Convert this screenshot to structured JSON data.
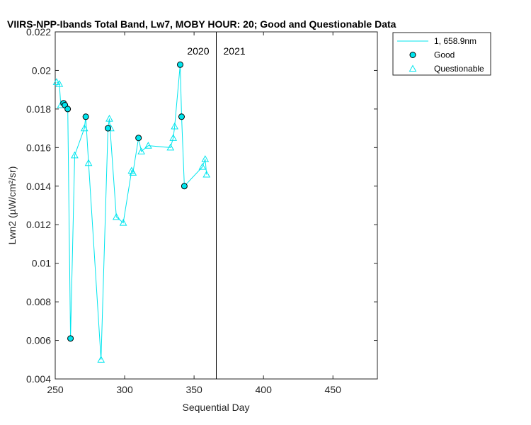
{
  "chart_data": {
    "type": "line",
    "title": "VIIRS-NPP-Ibands Total Band, Lw7, MOBY HOUR: 20;  Good and Questionable Data",
    "xlabel": "Sequential Day",
    "ylabel": "Lwn2 (µW/cm²/sr)",
    "xlim": [
      250,
      482
    ],
    "ylim": [
      0.004,
      0.022
    ],
    "xticks": [
      250,
      300,
      350,
      400,
      450
    ],
    "yticks": [
      0.004,
      0.006,
      0.008,
      0.01,
      0.012,
      0.014,
      0.016,
      0.018,
      0.02,
      0.022
    ],
    "xtick_labels": [
      "250",
      "300",
      "350",
      "400",
      "450"
    ],
    "ytick_labels": [
      "0.004",
      "0.006",
      "0.008",
      "0.01",
      "0.012",
      "0.014",
      "0.016",
      "0.018",
      "0.02",
      "0.022"
    ],
    "grid": false,
    "legend_position": "outside-top-right",
    "color": "#00e5ee",
    "year_divider": {
      "x": 366,
      "left_label": "2020",
      "right_label": "2021"
    },
    "series": [
      {
        "name": "1, 658.9nm",
        "style": "line",
        "x": [
          251,
          253,
          254,
          256,
          257,
          259,
          261,
          264,
          271,
          272,
          274,
          283,
          288,
          289,
          294,
          299,
          305,
          306,
          310,
          312,
          317,
          333,
          335,
          336,
          340,
          341,
          343,
          356,
          358,
          359
        ],
        "y": [
          0.0194,
          0.0193,
          0.0182,
          0.0183,
          0.0182,
          0.018,
          0.0061,
          0.0156,
          0.017,
          0.0176,
          0.0152,
          0.005,
          0.017,
          0.0175,
          0.0124,
          0.0121,
          0.0148,
          0.0147,
          0.0165,
          0.0158,
          0.0161,
          0.016,
          0.0165,
          0.0171,
          0.0203,
          0.0176,
          0.014,
          0.015,
          0.0154,
          0.0146
        ]
      },
      {
        "name": "Good",
        "style": "circle",
        "x": [
          256,
          257,
          259,
          261,
          272,
          288,
          310,
          340,
          341,
          343
        ],
        "y": [
          0.0183,
          0.0182,
          0.018,
          0.0061,
          0.0176,
          0.017,
          0.0165,
          0.0203,
          0.0176,
          0.014
        ]
      },
      {
        "name": "Questionable",
        "style": "triangle",
        "x": [
          251,
          253,
          254,
          264,
          271,
          274,
          283,
          289,
          290,
          294,
          299,
          305,
          306,
          312,
          317,
          333,
          335,
          336,
          356,
          358,
          359
        ],
        "y": [
          0.0194,
          0.0193,
          0.0182,
          0.0156,
          0.017,
          0.0152,
          0.005,
          0.0175,
          0.017,
          0.0124,
          0.0121,
          0.0148,
          0.0147,
          0.0158,
          0.0161,
          0.016,
          0.0165,
          0.0171,
          0.015,
          0.0154,
          0.0146
        ]
      }
    ]
  }
}
